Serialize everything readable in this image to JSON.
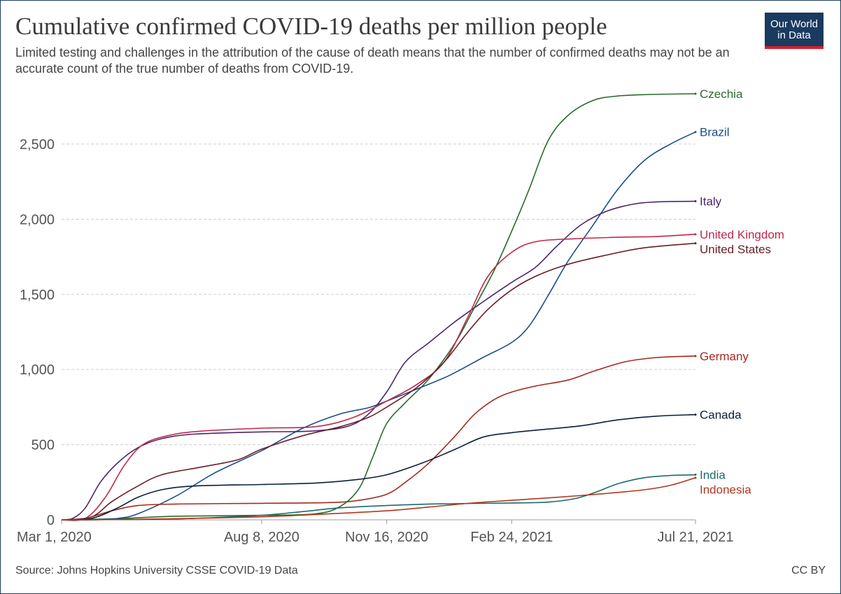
{
  "header": {
    "title": "Cumulative confirmed COVID-19 deaths per million people",
    "subtitle": "Limited testing and challenges in the attribution of the cause of death means that the number of confirmed deaths may not be an accurate count of the true number of deaths from COVID-19.",
    "logo_line1": "Our World",
    "logo_line2": "in Data",
    "logo_color": "#1a3a5f",
    "logo_accent": "#d6202a"
  },
  "footer": {
    "source": "Source: Johns Hopkins University CSSE COVID-19 Data",
    "license": "CC BY"
  },
  "chart_data": {
    "type": "line",
    "title": "Cumulative confirmed COVID-19 deaths per million people",
    "xlabel": "",
    "ylabel": "",
    "x_range": [
      "2020-03-01",
      "2021-07-21"
    ],
    "ylim": [
      0,
      2900
    ],
    "y_ticks": [
      0,
      500,
      1000,
      1500,
      2000,
      2500
    ],
    "y_tick_labels": [
      "0",
      "500",
      "1,000",
      "1,500",
      "2,000",
      "2,500"
    ],
    "x_ticks": [
      "2020-03-01",
      "2020-08-08",
      "2020-11-16",
      "2021-02-24",
      "2021-07-21"
    ],
    "x_tick_labels": [
      "Mar 1, 2020",
      "Aug 8, 2020",
      "Nov 16, 2020",
      "Feb 24, 2021",
      "Jul 21, 2021"
    ],
    "grid": "horizontal dashed",
    "legend": "labels at right end of lines",
    "series": [
      {
        "name": "Czechia",
        "color": "#286c2a",
        "points": [
          [
            "2020-03-01",
            0
          ],
          [
            "2020-04-15",
            8
          ],
          [
            "2020-06-01",
            24
          ],
          [
            "2020-08-08",
            30
          ],
          [
            "2020-09-20",
            40
          ],
          [
            "2020-10-10",
            90
          ],
          [
            "2020-10-25",
            210
          ],
          [
            "2020-11-05",
            420
          ],
          [
            "2020-11-16",
            640
          ],
          [
            "2020-12-01",
            780
          ],
          [
            "2020-12-20",
            940
          ],
          [
            "2021-01-10",
            1180
          ],
          [
            "2021-01-25",
            1410
          ],
          [
            "2021-02-10",
            1660
          ],
          [
            "2021-02-24",
            1920
          ],
          [
            "2021-03-10",
            2200
          ],
          [
            "2021-03-25",
            2520
          ],
          [
            "2021-04-10",
            2690
          ],
          [
            "2021-04-30",
            2790
          ],
          [
            "2021-05-20",
            2820
          ],
          [
            "2021-06-15",
            2830
          ],
          [
            "2021-07-21",
            2835
          ]
        ]
      },
      {
        "name": "Brazil",
        "color": "#1a4e8a",
        "points": [
          [
            "2020-03-01",
            0
          ],
          [
            "2020-03-25",
            0
          ],
          [
            "2020-04-15",
            10
          ],
          [
            "2020-05-01",
            40
          ],
          [
            "2020-06-01",
            160
          ],
          [
            "2020-07-01",
            310
          ],
          [
            "2020-08-08",
            460
          ],
          [
            "2020-09-10",
            610
          ],
          [
            "2020-10-10",
            705
          ],
          [
            "2020-11-01",
            745
          ],
          [
            "2020-11-16",
            790
          ],
          [
            "2020-12-10",
            870
          ],
          [
            "2021-01-05",
            960
          ],
          [
            "2021-02-01",
            1080
          ],
          [
            "2021-02-24",
            1180
          ],
          [
            "2021-03-10",
            1290
          ],
          [
            "2021-03-25",
            1490
          ],
          [
            "2021-04-10",
            1720
          ],
          [
            "2021-04-30",
            1960
          ],
          [
            "2021-05-20",
            2200
          ],
          [
            "2021-06-10",
            2390
          ],
          [
            "2021-07-01",
            2500
          ],
          [
            "2021-07-21",
            2580
          ]
        ]
      },
      {
        "name": "Italy",
        "color": "#4c266e",
        "points": [
          [
            "2020-03-01",
            0
          ],
          [
            "2020-03-10",
            10
          ],
          [
            "2020-03-20",
            80
          ],
          [
            "2020-04-01",
            250
          ],
          [
            "2020-04-15",
            380
          ],
          [
            "2020-05-01",
            480
          ],
          [
            "2020-05-20",
            540
          ],
          [
            "2020-06-15",
            570
          ],
          [
            "2020-08-08",
            585
          ],
          [
            "2020-09-15",
            590
          ],
          [
            "2020-10-15",
            620
          ],
          [
            "2020-11-01",
            700
          ],
          [
            "2020-11-16",
            850
          ],
          [
            "2020-12-01",
            1050
          ],
          [
            "2020-12-20",
            1180
          ],
          [
            "2021-01-10",
            1320
          ],
          [
            "2021-02-01",
            1450
          ],
          [
            "2021-02-24",
            1580
          ],
          [
            "2021-03-15",
            1680
          ],
          [
            "2021-04-01",
            1820
          ],
          [
            "2021-04-20",
            1960
          ],
          [
            "2021-05-10",
            2050
          ],
          [
            "2021-06-01",
            2100
          ],
          [
            "2021-06-20",
            2115
          ],
          [
            "2021-07-21",
            2120
          ]
        ]
      },
      {
        "name": "United Kingdom",
        "color": "#c0284a",
        "points": [
          [
            "2020-03-01",
            0
          ],
          [
            "2020-03-20",
            10
          ],
          [
            "2020-04-05",
            150
          ],
          [
            "2020-04-20",
            360
          ],
          [
            "2020-05-05",
            500
          ],
          [
            "2020-05-25",
            560
          ],
          [
            "2020-06-20",
            590
          ],
          [
            "2020-08-08",
            610
          ],
          [
            "2020-09-20",
            620
          ],
          [
            "2020-10-20",
            680
          ],
          [
            "2020-11-16",
            790
          ],
          [
            "2020-12-10",
            900
          ],
          [
            "2021-01-01",
            1050
          ],
          [
            "2021-01-20",
            1350
          ],
          [
            "2021-02-05",
            1620
          ],
          [
            "2021-02-24",
            1780
          ],
          [
            "2021-03-15",
            1850
          ],
          [
            "2021-04-15",
            1870
          ],
          [
            "2021-05-20",
            1880
          ],
          [
            "2021-06-20",
            1885
          ],
          [
            "2021-07-21",
            1900
          ]
        ]
      },
      {
        "name": "United States",
        "color": "#6b1e27",
        "points": [
          [
            "2020-03-01",
            0
          ],
          [
            "2020-03-25",
            20
          ],
          [
            "2020-04-10",
            120
          ],
          [
            "2020-04-30",
            220
          ],
          [
            "2020-05-20",
            300
          ],
          [
            "2020-06-20",
            350
          ],
          [
            "2020-07-20",
            400
          ],
          [
            "2020-08-08",
            470
          ],
          [
            "2020-09-10",
            560
          ],
          [
            "2020-10-10",
            620
          ],
          [
            "2020-11-01",
            680
          ],
          [
            "2020-11-16",
            750
          ],
          [
            "2020-12-10",
            880
          ],
          [
            "2021-01-01",
            1050
          ],
          [
            "2021-01-20",
            1250
          ],
          [
            "2021-02-05",
            1400
          ],
          [
            "2021-02-24",
            1530
          ],
          [
            "2021-03-15",
            1620
          ],
          [
            "2021-04-10",
            1700
          ],
          [
            "2021-05-10",
            1760
          ],
          [
            "2021-06-10",
            1810
          ],
          [
            "2021-07-21",
            1840
          ]
        ]
      },
      {
        "name": "Germany",
        "color": "#a52a1e",
        "points": [
          [
            "2020-03-01",
            0
          ],
          [
            "2020-03-20",
            10
          ],
          [
            "2020-04-10",
            60
          ],
          [
            "2020-05-01",
            95
          ],
          [
            "2020-06-01",
            105
          ],
          [
            "2020-08-08",
            110
          ],
          [
            "2020-10-01",
            115
          ],
          [
            "2020-10-25",
            130
          ],
          [
            "2020-11-16",
            170
          ],
          [
            "2020-12-01",
            250
          ],
          [
            "2020-12-20",
            380
          ],
          [
            "2021-01-10",
            560
          ],
          [
            "2021-01-25",
            700
          ],
          [
            "2021-02-10",
            800
          ],
          [
            "2021-02-24",
            850
          ],
          [
            "2021-03-15",
            890
          ],
          [
            "2021-04-10",
            930
          ],
          [
            "2021-05-01",
            990
          ],
          [
            "2021-05-25",
            1050
          ],
          [
            "2021-06-20",
            1080
          ],
          [
            "2021-07-21",
            1090
          ]
        ]
      },
      {
        "name": "Canada",
        "color": "#0a1f3c",
        "points": [
          [
            "2020-03-01",
            0
          ],
          [
            "2020-03-25",
            10
          ],
          [
            "2020-04-15",
            80
          ],
          [
            "2020-05-01",
            150
          ],
          [
            "2020-05-20",
            200
          ],
          [
            "2020-06-15",
            225
          ],
          [
            "2020-08-08",
            235
          ],
          [
            "2020-09-20",
            245
          ],
          [
            "2020-10-20",
            265
          ],
          [
            "2020-11-16",
            300
          ],
          [
            "2020-12-15",
            380
          ],
          [
            "2021-01-10",
            470
          ],
          [
            "2021-02-01",
            550
          ],
          [
            "2021-02-24",
            580
          ],
          [
            "2021-03-20",
            600
          ],
          [
            "2021-04-20",
            625
          ],
          [
            "2021-05-20",
            665
          ],
          [
            "2021-06-20",
            690
          ],
          [
            "2021-07-21",
            700
          ]
        ]
      },
      {
        "name": "India",
        "color": "#1b6b6b",
        "points": [
          [
            "2020-03-01",
            0
          ],
          [
            "2020-05-01",
            3
          ],
          [
            "2020-06-01",
            6
          ],
          [
            "2020-07-01",
            15
          ],
          [
            "2020-08-08",
            30
          ],
          [
            "2020-09-10",
            55
          ],
          [
            "2020-10-10",
            80
          ],
          [
            "2020-11-16",
            95
          ],
          [
            "2020-12-20",
            105
          ],
          [
            "2021-02-24",
            112
          ],
          [
            "2021-03-25",
            118
          ],
          [
            "2021-04-15",
            140
          ],
          [
            "2021-05-01",
            180
          ],
          [
            "2021-05-20",
            240
          ],
          [
            "2021-06-10",
            280
          ],
          [
            "2021-07-01",
            295
          ],
          [
            "2021-07-21",
            300
          ]
        ]
      },
      {
        "name": "Indonesia",
        "color": "#b3361e",
        "points": [
          [
            "2020-03-01",
            0
          ],
          [
            "2020-04-15",
            2
          ],
          [
            "2020-06-01",
            8
          ],
          [
            "2020-08-08",
            20
          ],
          [
            "2020-10-01",
            40
          ],
          [
            "2020-11-16",
            60
          ],
          [
            "2020-12-20",
            85
          ],
          [
            "2021-01-20",
            110
          ],
          [
            "2021-02-24",
            130
          ],
          [
            "2021-04-01",
            150
          ],
          [
            "2021-05-10",
            175
          ],
          [
            "2021-06-10",
            200
          ],
          [
            "2021-07-01",
            230
          ],
          [
            "2021-07-21",
            280
          ]
        ]
      }
    ]
  }
}
